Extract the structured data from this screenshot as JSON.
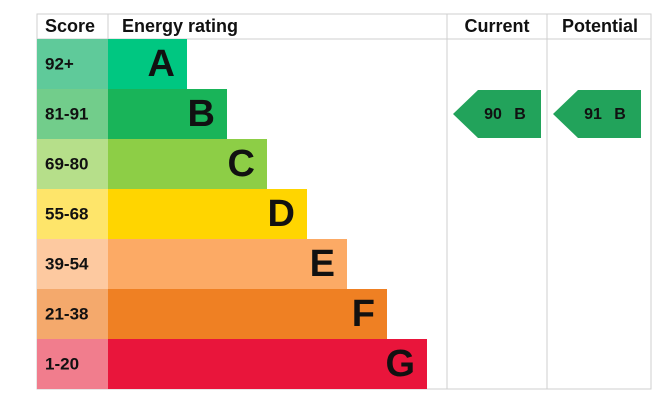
{
  "header": {
    "score": "Score",
    "energy_rating": "Energy rating",
    "current": "Current",
    "potential": "Potential"
  },
  "bands": [
    {
      "score": "92+",
      "letter": "A",
      "color": "#00c781",
      "score_color": "#5fca9a"
    },
    {
      "score": "81-91",
      "letter": "B",
      "color": "#19b459",
      "score_color": "#72cd8b"
    },
    {
      "score": "69-80",
      "letter": "C",
      "color": "#8dce46",
      "score_color": "#b6df8a"
    },
    {
      "score": "55-68",
      "letter": "D",
      "color": "#ffd500",
      "score_color": "#fee56a"
    },
    {
      "score": "39-54",
      "letter": "E",
      "color": "#fcaa65",
      "score_color": "#fdc9a0"
    },
    {
      "score": "21-38",
      "letter": "F",
      "color": "#ef8023",
      "score_color": "#f4a96c"
    },
    {
      "score": "1-20",
      "letter": "G",
      "color": "#e9153b",
      "score_color": "#f17d8d"
    }
  ],
  "current": {
    "score": "90",
    "rating": "B",
    "color": "#22a35b"
  },
  "potential": {
    "score": "91",
    "rating": "B",
    "color": "#22a35b"
  }
}
